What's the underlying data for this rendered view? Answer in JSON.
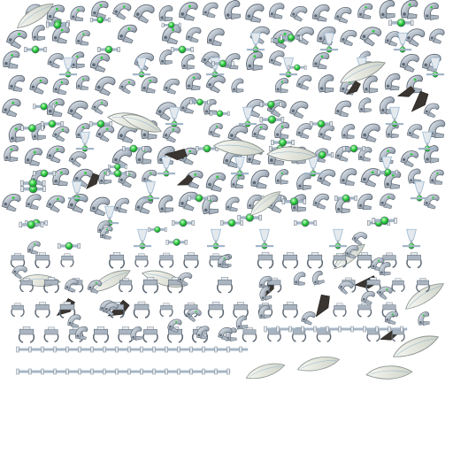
{
  "texture_atlas": {
    "background_color": "#ffffff",
    "palette": {
      "metal_light": "#e4e9ee",
      "metal_mid": "#aab5c1",
      "metal_dark": "#5c6773",
      "gem_green": "#2ecc40",
      "gem_highlight": "#c9ffc9",
      "leaf_fill": "#eceee6",
      "leaf_edge": "#8a9490",
      "shard_dark": "#3a3530",
      "outline_blue": "#8fb2cf"
    },
    "sprite_kinds": [
      "claw-arm",
      "gem-connector",
      "goblet-pod",
      "wing-blade",
      "dark-shard",
      "tripod-clamp",
      "pipe-rail"
    ]
  }
}
